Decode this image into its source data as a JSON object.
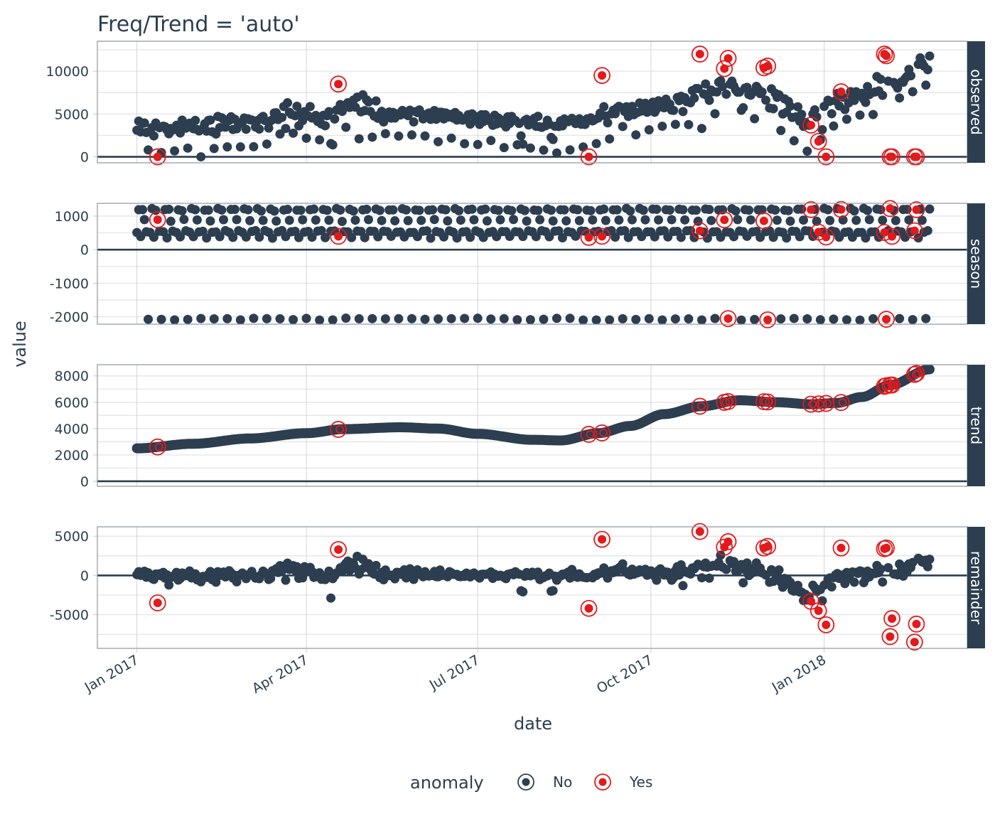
{
  "chart_data": {
    "type": "scatter",
    "title": "Freq/Trend = 'auto'",
    "xlabel": "date",
    "ylabel": "value",
    "x_ticks": [
      {
        "label": "Jan 2017",
        "day": 0
      },
      {
        "label": "Apr 2017",
        "day": 90
      },
      {
        "label": "Jul 2017",
        "day": 181
      },
      {
        "label": "Oct 2017",
        "day": 273
      },
      {
        "label": "Jan 2018",
        "day": 365
      }
    ],
    "x_range_days": [
      -21,
      441
    ],
    "series_start": "2017-01-01",
    "n_days": 422,
    "legend": {
      "title": "anomaly",
      "position": "bottom",
      "entries": [
        {
          "label": "No",
          "color": "#2c3e50"
        },
        {
          "label": "Yes",
          "color": "#e31a1c"
        }
      ]
    },
    "colors": {
      "normal": "#2c3e50",
      "anomaly": "#e31a1c",
      "strip": "#2c3e50",
      "grid": "#d9d9d9"
    },
    "facets": [
      {
        "key": "observed",
        "label": "observed",
        "ylim": [
          -700,
          13500
        ],
        "ticks": [
          0,
          5000,
          10000
        ],
        "tick_labels": [
          "0",
          "5000",
          "10000"
        ]
      },
      {
        "key": "season",
        "label": "season",
        "ylim": [
          -2220,
          1380
        ],
        "ticks": [
          -2000,
          -1000,
          0,
          1000
        ],
        "tick_labels": [
          "-2000",
          "-1000",
          "0",
          "1000"
        ]
      },
      {
        "key": "trend",
        "label": "trend",
        "ylim": [
          -380,
          8850
        ],
        "ticks": [
          0,
          2000,
          4000,
          6000,
          8000
        ],
        "tick_labels": [
          "0",
          "2000",
          "4000",
          "6000",
          "8000"
        ]
      },
      {
        "key": "remainder",
        "label": "remainder",
        "ylim": [
          -9300,
          6200
        ],
        "ticks": [
          -5000,
          0,
          5000
        ],
        "tick_labels": [
          "-5000",
          "0",
          "5000"
        ]
      }
    ],
    "season_weekly": [
      540,
      1200,
      370,
      1180,
      870,
      540,
      -2070
    ],
    "trend_knots": [
      {
        "day": 0,
        "value": 2500
      },
      {
        "day": 30,
        "value": 2850
      },
      {
        "day": 60,
        "value": 3250
      },
      {
        "day": 90,
        "value": 3650
      },
      {
        "day": 110,
        "value": 3960
      },
      {
        "day": 140,
        "value": 4100
      },
      {
        "day": 160,
        "value": 4000
      },
      {
        "day": 181,
        "value": 3600
      },
      {
        "day": 210,
        "value": 3150
      },
      {
        "day": 225,
        "value": 3100
      },
      {
        "day": 245,
        "value": 3650
      },
      {
        "day": 262,
        "value": 4200
      },
      {
        "day": 280,
        "value": 5100
      },
      {
        "day": 300,
        "value": 5700
      },
      {
        "day": 320,
        "value": 6150
      },
      {
        "day": 340,
        "value": 6000
      },
      {
        "day": 358,
        "value": 5850
      },
      {
        "day": 372,
        "value": 5950
      },
      {
        "day": 385,
        "value": 6400
      },
      {
        "day": 400,
        "value": 7300
      },
      {
        "day": 421,
        "value": 8500
      }
    ],
    "remainder_profile": [
      {
        "day": 0,
        "level": 0,
        "spread": 700
      },
      {
        "day": 60,
        "level": 0,
        "spread": 600
      },
      {
        "day": 85,
        "level": 700,
        "spread": 900
      },
      {
        "day": 100,
        "level": -300,
        "spread": 700
      },
      {
        "day": 115,
        "level": 1500,
        "spread": 1000
      },
      {
        "day": 130,
        "level": 300,
        "spread": 700
      },
      {
        "day": 180,
        "level": 0,
        "spread": 500
      },
      {
        "day": 240,
        "level": 0,
        "spread": 500
      },
      {
        "day": 255,
        "level": 700,
        "spread": 900
      },
      {
        "day": 280,
        "level": 0,
        "spread": 700
      },
      {
        "day": 310,
        "level": 1200,
        "spread": 1100
      },
      {
        "day": 340,
        "level": 300,
        "spread": 900
      },
      {
        "day": 355,
        "level": -2600,
        "spread": 900
      },
      {
        "day": 372,
        "level": 0,
        "spread": 900
      },
      {
        "day": 405,
        "level": 300,
        "spread": 1000
      },
      {
        "day": 421,
        "level": 2000,
        "spread": 900
      }
    ],
    "anomalies": [
      {
        "day": 11,
        "observed": 0,
        "remainder": -3500
      },
      {
        "day": 107,
        "observed": 8500,
        "remainder": 3300
      },
      {
        "day": 240,
        "observed": 0,
        "remainder": -4200
      },
      {
        "day": 247,
        "observed": 9500,
        "remainder": 4600
      },
      {
        "day": 299,
        "observed": 12000,
        "remainder": 5600
      },
      {
        "day": 312,
        "observed": 10300,
        "remainder": 3600
      },
      {
        "day": 314,
        "observed": 11500,
        "remainder": 4300
      },
      {
        "day": 333,
        "observed": 10400,
        "remainder": 3500
      },
      {
        "day": 335,
        "observed": 10600,
        "remainder": 3700
      },
      {
        "day": 358,
        "observed": 3700,
        "remainder": -3300
      },
      {
        "day": 362,
        "observed": 1800,
        "remainder": -4500
      },
      {
        "day": 366,
        "observed": 0,
        "remainder": -6300
      },
      {
        "day": 374,
        "observed": 7600,
        "remainder": 3500
      },
      {
        "day": 397,
        "observed": 12000,
        "remainder": 3400
      },
      {
        "day": 398,
        "observed": 11800,
        "remainder": 3500
      },
      {
        "day": 400,
        "observed": 0,
        "remainder": -7800
      },
      {
        "day": 401,
        "observed": 0,
        "remainder": -5500
      },
      {
        "day": 413,
        "observed": 0,
        "remainder": -8500
      },
      {
        "day": 414,
        "observed": 0,
        "remainder": -6200
      }
    ]
  }
}
